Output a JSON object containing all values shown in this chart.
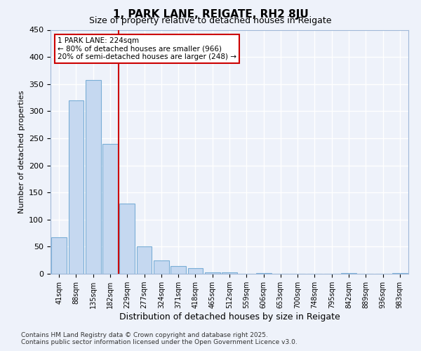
{
  "title": "1, PARK LANE, REIGATE, RH2 8JU",
  "subtitle": "Size of property relative to detached houses in Reigate",
  "xlabel": "Distribution of detached houses by size in Reigate",
  "ylabel": "Number of detached properties",
  "footer_line1": "Contains HM Land Registry data © Crown copyright and database right 2025.",
  "footer_line2": "Contains public sector information licensed under the Open Government Licence v3.0.",
  "categories": [
    "41sqm",
    "88sqm",
    "135sqm",
    "182sqm",
    "229sqm",
    "277sqm",
    "324sqm",
    "371sqm",
    "418sqm",
    "465sqm",
    "512sqm",
    "559sqm",
    "606sqm",
    "653sqm",
    "700sqm",
    "748sqm",
    "795sqm",
    "842sqm",
    "889sqm",
    "936sqm",
    "983sqm"
  ],
  "values": [
    67,
    320,
    358,
    240,
    130,
    50,
    25,
    14,
    10,
    3,
    2,
    0,
    1,
    0,
    0,
    0,
    0,
    1,
    0,
    0,
    1
  ],
  "bar_color": "#c5d8f0",
  "bar_edge_color": "#7aaed6",
  "background_color": "#eef2fa",
  "grid_color": "#ffffff",
  "annotation_box_color": "#cc0000",
  "annotation_line1": "1 PARK LANE: 224sqm",
  "annotation_line2": "← 80% of detached houses are smaller (966)",
  "annotation_line3": "20% of semi-detached houses are larger (248) →",
  "vline_index": 4,
  "ylim": [
    0,
    450
  ],
  "yticks": [
    0,
    50,
    100,
    150,
    200,
    250,
    300,
    350,
    400,
    450
  ]
}
